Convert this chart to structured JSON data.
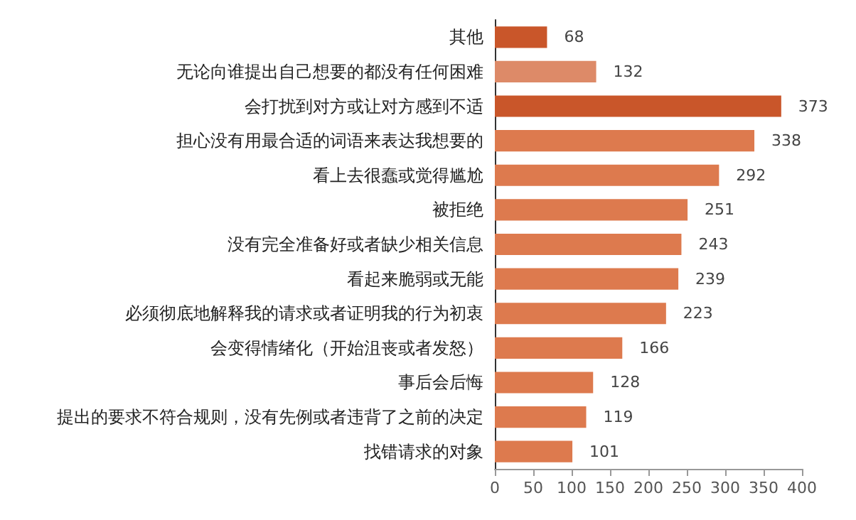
{
  "chart_data": {
    "type": "bar",
    "orientation": "horizontal",
    "categories": [
      "其他",
      "无论向谁提出自己想要的都没有任何困难",
      "会打扰到对方或让对方感到不适",
      "担心没有用最合适的词语来表达我想要的",
      "看上去很蠢或觉得尴尬",
      "被拒绝",
      "没有完全准备好或者缺少相关信息",
      "看起来脆弱或无能",
      "必须彻底地解释我的请求或者证明我的行为初衷",
      "会变得情绪化（开始沮丧或者发怒）",
      "事后会后悔",
      "提出的要求不符合规则，没有先例或者违背了之前的决定",
      "找错请求的对象"
    ],
    "values": [
      68,
      132,
      373,
      338,
      292,
      251,
      243,
      239,
      223,
      166,
      128,
      119,
      101
    ],
    "colors": [
      "#c9562a",
      "#dd8a68",
      "#c9562a",
      "#dd7a4e",
      "#dd7a4e",
      "#dd7a4e",
      "#dd7a4e",
      "#dd7a4e",
      "#dd7a4e",
      "#dd7a4e",
      "#dd7a4e",
      "#dd7a4e",
      "#dd7a4e"
    ],
    "data_labels": true,
    "xlim": [
      0,
      400
    ],
    "xticks": [
      0,
      50,
      100,
      150,
      200,
      250,
      300,
      350,
      400
    ],
    "grid": false
  }
}
